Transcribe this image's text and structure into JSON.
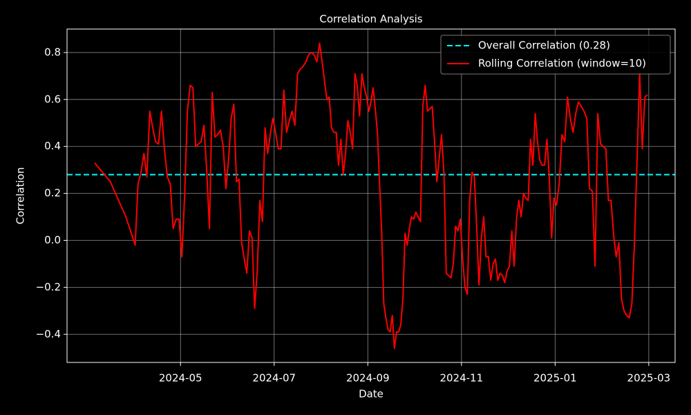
{
  "chart_data": {
    "type": "line",
    "title": "Correlation Analysis",
    "x_label": "Date",
    "y_label": "Correlation",
    "ylim": [
      -0.52,
      0.9
    ],
    "yticks": [
      {
        "value": -0.4,
        "label": "−0.4"
      },
      {
        "value": -0.2,
        "label": "−0.2"
      },
      {
        "value": 0,
        "label": "0.0"
      },
      0.2,
      0.4,
      0.6,
      0.8
    ],
    "xticks": [
      "2024-05",
      "2024-07",
      "2024-09",
      "2024-11",
      "2025-01",
      "2025-03"
    ],
    "grid": true,
    "legend": "upper right",
    "x": [
      "2024-03",
      "2024-03",
      "2024-03",
      "2024-04",
      "2024-04",
      "2024-04",
      "2024-04",
      "2024-04",
      "2024-04",
      "2024-04",
      "2024-04",
      "2024-04",
      "2024-04",
      "2024-04",
      "2024-04",
      "2024-04",
      "2024-04",
      "2024-04",
      "2024-04",
      "2024-05",
      "2024-05",
      "2024-05",
      "2024-05",
      "2024-05",
      "2024-05",
      "2024-05",
      "2024-05",
      "2024-05",
      "2024-05",
      "2024-05",
      "2024-05",
      "2024-05",
      "2024-05",
      "2024-05",
      "2024-05",
      "2024-05",
      "2024-06",
      "2024-06",
      "2024-06",
      "2024-06",
      "2024-06",
      "2024-06",
      "2024-06",
      "2024-06",
      "2024-06",
      "2024-06",
      "2024-06",
      "2024-06",
      "2024-06",
      "2024-06",
      "2024-06",
      "2024-06",
      "2024-06",
      "2024-06",
      "2024-07",
      "2024-07",
      "2024-07",
      "2024-07",
      "2024-07",
      "2024-07",
      "2024-07",
      "2024-07",
      "2024-07",
      "2024-07",
      "2024-07",
      "2024-07",
      "2024-07",
      "2024-07",
      "2024-07",
      "2024-07",
      "2024-07",
      "2024-08",
      "2024-08",
      "2024-08",
      "2024-08",
      "2024-08",
      "2024-08",
      "2024-08",
      "2024-08",
      "2024-08",
      "2024-08",
      "2024-08",
      "2024-08",
      "2024-08",
      "2024-08",
      "2024-08",
      "2024-08",
      "2024-08",
      "2024-08",
      "2024-08",
      "2024-08",
      "2024-09",
      "2024-09",
      "2024-09",
      "2024-09",
      "2024-09",
      "2024-09",
      "2024-09",
      "2024-09",
      "2024-09",
      "2024-09",
      "2024-09",
      "2024-09",
      "2024-09",
      "2024-09",
      "2024-09",
      "2024-09",
      "2024-09",
      "2024-09",
      "2024-09",
      "2024-09",
      "2024-09",
      "2024-09",
      "2024-10",
      "2024-10",
      "2024-10",
      "2024-10",
      "2024-10",
      "2024-10",
      "2024-10",
      "2024-10",
      "2024-10",
      "2024-10",
      "2024-10",
      "2024-10",
      "2024-10",
      "2024-10",
      "2024-10",
      "2024-10",
      "2024-10",
      "2024-10",
      "2024-10",
      "2024-10",
      "2024-11",
      "2024-11",
      "2024-11",
      "2024-11",
      "2024-11",
      "2024-11",
      "2024-11",
      "2024-11",
      "2024-11",
      "2024-11",
      "2024-11",
      "2024-11",
      "2024-11",
      "2024-11",
      "2024-11",
      "2024-11",
      "2024-11",
      "2024-11",
      "2024-11",
      "2024-11",
      "2024-12",
      "2024-12",
      "2024-12",
      "2024-12",
      "2024-12",
      "2024-12",
      "2024-12",
      "2024-12",
      "2024-12",
      "2024-12",
      "2024-12",
      "2024-12",
      "2024-12",
      "2024-12",
      "2024-12",
      "2024-12",
      "2024-12",
      "2024-12",
      "2024-12",
      "2024-12",
      "2025-01",
      "2025-01",
      "2025-01",
      "2025-01",
      "2025-01",
      "2025-01",
      "2025-01",
      "2025-01",
      "2025-01",
      "2025-01",
      "2025-01",
      "2025-01",
      "2025-01",
      "2025-01",
      "2025-01",
      "2025-01",
      "2025-01",
      "2025-02",
      "2025-02",
      "2025-02",
      "2025-02",
      "2025-02",
      "2025-02",
      "2025-02",
      "2025-02",
      "2025-02",
      "2025-02",
      "2025-02",
      "2025-02",
      "2025-02",
      "2025-02",
      "2025-02",
      "2025-02",
      "2025-02",
      "2025-02"
    ],
    "series": [
      {
        "name": "Overall Correlation (0.28)",
        "color": "#00ffff",
        "value": 0.28,
        "style": "dashed"
      },
      {
        "name": "Rolling Correlation (window=10)",
        "color": "#ff0000",
        "style": "solid",
        "values": [
          0.33,
          0.25,
          0.1,
          -0.02,
          0.24,
          0.29,
          0.37,
          0.27,
          0.55,
          0.48,
          0.42,
          0.41,
          0.55,
          0.39,
          0.27,
          0.24,
          0.05,
          0.09,
          0.09,
          -0.07,
          0.19,
          0.55,
          0.66,
          0.65,
          0.4,
          0.41,
          0.42,
          0.49,
          0.3,
          0.05,
          0.63,
          0.44,
          0.45,
          0.47,
          0.4,
          0.22,
          0.35,
          0.52,
          0.58,
          0.25,
          0.26,
          -0.01,
          -0.08,
          -0.14,
          0.04,
          0.01,
          -0.29,
          -0.13,
          0.17,
          0.08,
          0.48,
          0.37,
          0.45,
          0.52,
          0.46,
          0.39,
          0.39,
          0.64,
          0.46,
          0.51,
          0.55,
          0.49,
          0.71,
          0.73,
          0.74,
          0.76,
          0.79,
          0.8,
          0.79,
          0.76,
          0.84,
          0.76,
          0.68,
          0.6,
          0.61,
          0.48,
          0.46,
          0.46,
          0.32,
          0.43,
          0.28,
          0.37,
          0.51,
          0.46,
          0.39,
          0.71,
          0.66,
          0.53,
          0.71,
          0.65,
          0.61,
          0.55,
          0.59,
          0.65,
          0.56,
          0.46,
          0.25,
          0.04,
          -0.27,
          -0.33,
          -0.38,
          -0.39,
          -0.32,
          -0.46,
          -0.39,
          -0.39,
          -0.36,
          -0.25,
          0.03,
          -0.02,
          0.05,
          0.1,
          0.09,
          0.12,
          0.1,
          0.08,
          0.57,
          0.66,
          0.55,
          0.56,
          0.57,
          0.42,
          0.25,
          0.35,
          0.45,
          0.29,
          -0.14,
          -0.15,
          -0.16,
          -0.1,
          0.06,
          0.04,
          0.09,
          -0.08,
          -0.2,
          -0.23,
          0.17,
          0.29,
          0.27,
          0.06,
          -0.19,
          0.01,
          0.1,
          -0.07,
          -0.07,
          -0.17,
          -0.1,
          -0.08,
          -0.17,
          -0.14,
          -0.15,
          -0.18,
          -0.13,
          -0.11,
          0.04,
          -0.11,
          0.09,
          0.17,
          0.1,
          0.2,
          0.18,
          0.17,
          0.43,
          0.32,
          0.54,
          0.42,
          0.34,
          0.32,
          0.32,
          0.43,
          0.27,
          0.01,
          0.18,
          0.15,
          0.24,
          0.45,
          0.42,
          0.61,
          0.52,
          0.46,
          0.54,
          0.59,
          0.57,
          0.55,
          0.52,
          0.22,
          0.21,
          -0.11,
          0.54,
          0.41,
          0.4,
          0.39,
          0.17,
          0.17,
          0.02,
          -0.07,
          -0.01,
          -0.25,
          -0.3,
          -0.32,
          -0.33,
          -0.27,
          -0.01,
          0.34,
          0.71,
          0.39,
          0.61,
          0.62
        ]
      }
    ]
  }
}
